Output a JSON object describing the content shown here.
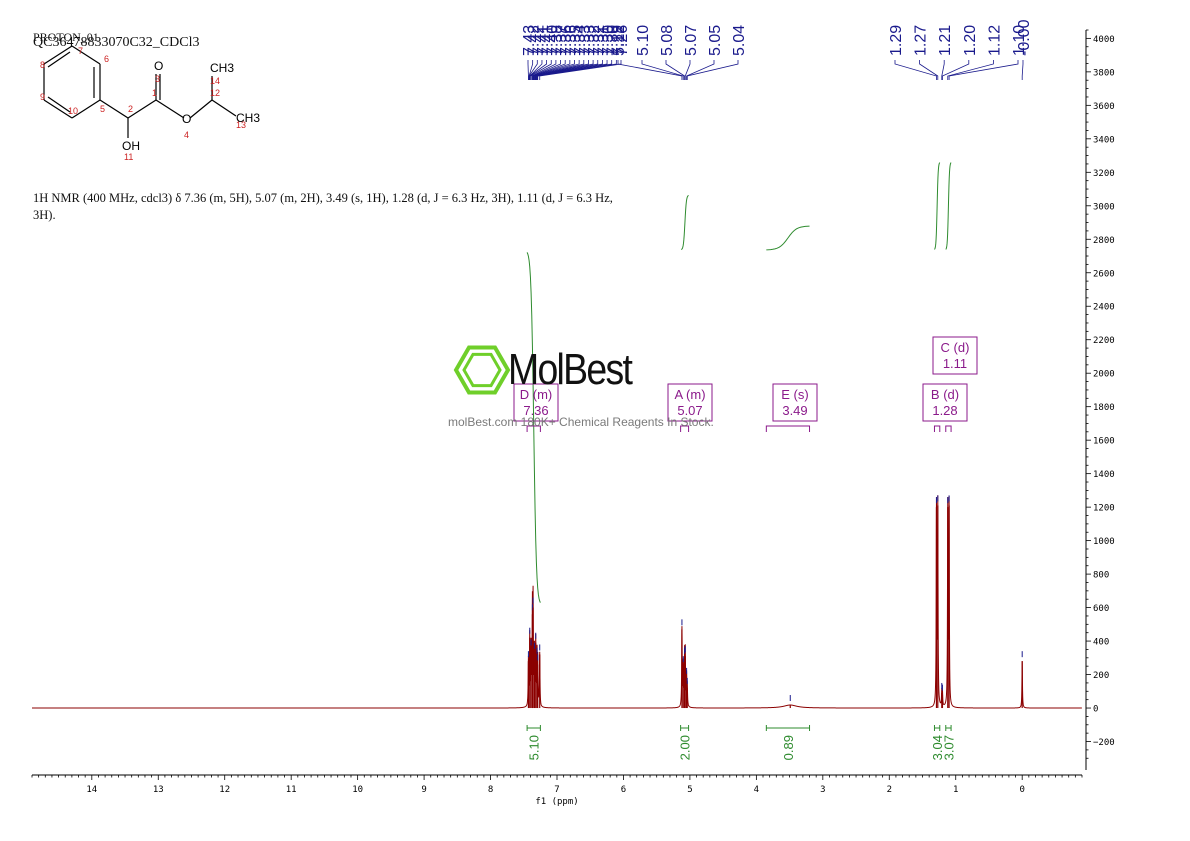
{
  "header": {
    "line1": "PROTON_01",
    "line2": "QC36478833070C32_CDCl3"
  },
  "description": "1H NMR (400 MHz, cdcl3) δ 7.36 (m, 5H), 5.07 (m, 2H), 3.49 (s, 1H), 1.28 (d, J = 6.3 Hz, 3H), 1.11 (d, J = 6.3 Hz, 3H).",
  "watermark": {
    "brand": "MolBest",
    "tagline": "molBest.com 180K+ Chemical Reagents In Stock."
  },
  "structure": {
    "atom_labels": [
      "O",
      "OH",
      "CH3",
      "CH3",
      "O",
      "OH"
    ],
    "atom_numbers": [
      "1",
      "2",
      "3",
      "4",
      "5",
      "6",
      "7",
      "8",
      "9",
      "10",
      "11",
      "12",
      "13",
      "14"
    ]
  },
  "colors": {
    "spectrum": "#8b0000",
    "peak_labels": "#1a1a8c",
    "integral": "#2e8b2e",
    "multiplet": "#8b1a8b",
    "logo": "#6fcf2a"
  },
  "chart_data": {
    "type": "line",
    "xlabel": "f1 (ppm)",
    "xlim": [
      14.9,
      -0.9
    ],
    "ylim": [
      -400,
      4050
    ],
    "x_ticks": [
      14,
      13,
      12,
      11,
      10,
      9,
      8,
      7,
      6,
      5,
      4,
      3,
      2,
      1,
      0
    ],
    "y_ticks": [
      4000,
      3800,
      3600,
      3400,
      3200,
      3000,
      2800,
      2600,
      2400,
      2200,
      2000,
      1800,
      1600,
      1400,
      1200,
      1000,
      800,
      600,
      400,
      200,
      0,
      -200
    ],
    "peak_labels": [
      "7.43",
      "7.42",
      "7.42",
      "7.41",
      "7.41",
      "7.40",
      "7.38",
      "7.37",
      "7.36",
      "7.36",
      "7.35",
      "7.34",
      "7.33",
      "7.33",
      "7.32",
      "7.32",
      "7.31",
      "7.30",
      "7.30",
      "7.29",
      "7.26",
      "5.12",
      "5.10",
      "5.08",
      "5.07",
      "5.05",
      "5.04",
      "1.29",
      "1.27",
      "1.21",
      "1.20",
      "1.12",
      "1.10",
      "-0.00"
    ],
    "peaks": [
      {
        "ppm": 7.43,
        "intensity": 280
      },
      {
        "ppm": 7.41,
        "intensity": 420
      },
      {
        "ppm": 7.39,
        "intensity": 350
      },
      {
        "ppm": 7.37,
        "intensity": 560
      },
      {
        "ppm": 7.36,
        "intensity": 600
      },
      {
        "ppm": 7.34,
        "intensity": 330
      },
      {
        "ppm": 7.32,
        "intensity": 390
      },
      {
        "ppm": 7.3,
        "intensity": 300
      },
      {
        "ppm": 7.29,
        "intensity": 260
      },
      {
        "ppm": 7.26,
        "intensity": 320
      },
      {
        "ppm": 5.12,
        "intensity": 470
      },
      {
        "ppm": 5.1,
        "intensity": 250
      },
      {
        "ppm": 5.08,
        "intensity": 300
      },
      {
        "ppm": 5.07,
        "intensity": 310
      },
      {
        "ppm": 5.05,
        "intensity": 180
      },
      {
        "ppm": 5.04,
        "intensity": 120
      },
      {
        "ppm": 3.49,
        "intensity": 18
      },
      {
        "ppm": 1.29,
        "intensity": 1200
      },
      {
        "ppm": 1.27,
        "intensity": 1210
      },
      {
        "ppm": 1.21,
        "intensity": 90
      },
      {
        "ppm": 1.2,
        "intensity": 80
      },
      {
        "ppm": 1.12,
        "intensity": 1200
      },
      {
        "ppm": 1.1,
        "intensity": 1210
      },
      {
        "ppm": -0.0,
        "intensity": 280
      }
    ],
    "multiplets": [
      {
        "label": "D (m)",
        "shift": "7.36",
        "range": [
          7.45,
          7.25
        ]
      },
      {
        "label": "A (m)",
        "shift": "5.07",
        "range": [
          5.14,
          5.02
        ]
      },
      {
        "label": "E (s)",
        "shift": "3.49",
        "range": [
          3.85,
          3.2
        ]
      },
      {
        "label": "B (d)",
        "shift": "1.28",
        "range": [
          1.32,
          1.24
        ]
      },
      {
        "label": "C (d)",
        "shift": "1.11",
        "range": [
          1.15,
          1.07
        ]
      }
    ],
    "integrals": [
      {
        "value": "5.10",
        "range": [
          7.45,
          7.25
        ]
      },
      {
        "value": "2.00",
        "range": [
          5.14,
          5.02
        ]
      },
      {
        "value": "0.89",
        "range": [
          3.85,
          3.2
        ]
      },
      {
        "value": "3.04",
        "range": [
          1.32,
          1.24
        ]
      },
      {
        "value": "3.07",
        "range": [
          1.15,
          1.07
        ]
      }
    ]
  }
}
